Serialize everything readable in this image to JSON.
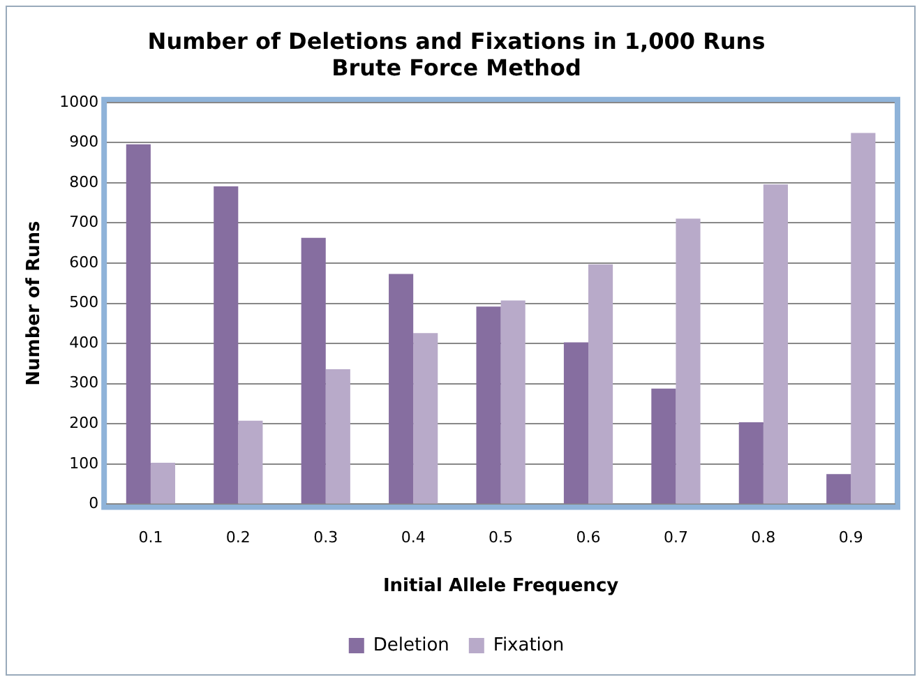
{
  "chart_data": {
    "type": "bar",
    "title": "Number of Deletions and Fixations in 1,000 Runs",
    "subtitle": "Brute Force Method",
    "xlabel": "Initial Allele Frequency",
    "ylabel": "Number of Runs",
    "categories": [
      "0.1",
      "0.2",
      "0.3",
      "0.4",
      "0.5",
      "0.6",
      "0.7",
      "0.8",
      "0.9"
    ],
    "series": [
      {
        "name": "Deletion",
        "color": "#866ea0",
        "values": [
          896,
          791,
          663,
          573,
          492,
          403,
          288,
          204,
          75
        ]
      },
      {
        "name": "Fixation",
        "color": "#b8aac9",
        "values": [
          103,
          208,
          336,
          426,
          507,
          597,
          711,
          796,
          924
        ]
      }
    ],
    "ylim": [
      0,
      1000
    ],
    "yticks": [
      0,
      100,
      200,
      300,
      400,
      500,
      600,
      700,
      800,
      900,
      1000
    ],
    "grid": "y",
    "legend": "bottom"
  }
}
